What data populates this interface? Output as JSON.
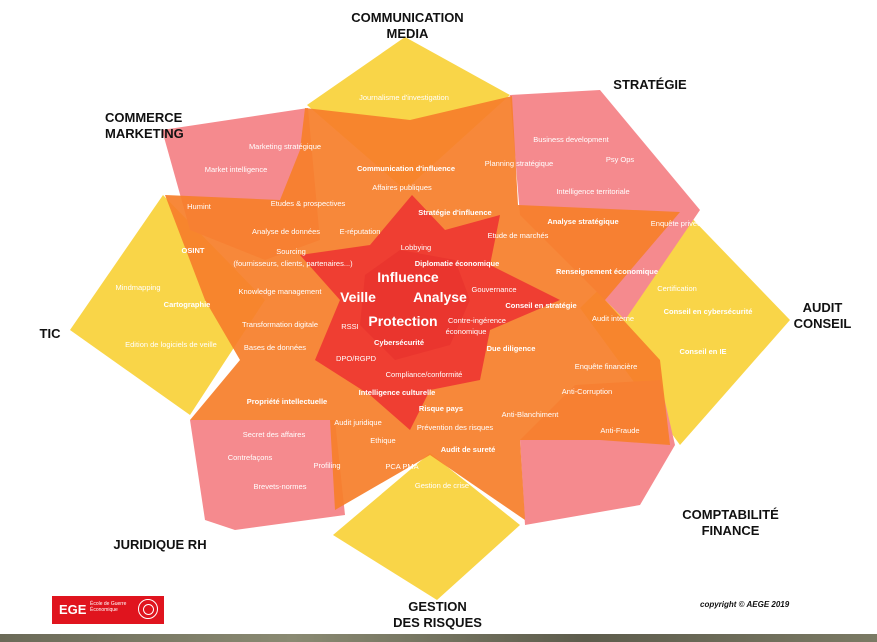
{
  "diagram": {
    "sectors": [
      {
        "id": "communication",
        "label_lines": [
          "COMMUNICATION",
          "MEDIA"
        ]
      },
      {
        "id": "strategie",
        "label_lines": [
          "STRATÉGIE"
        ]
      },
      {
        "id": "audit",
        "label_lines": [
          "AUDIT",
          "CONSEIL"
        ]
      },
      {
        "id": "comptabilite",
        "label_lines": [
          "COMPTABILITÉ",
          "FINANCE"
        ]
      },
      {
        "id": "gestion",
        "label_lines": [
          "GESTION",
          "DES RISQUES"
        ]
      },
      {
        "id": "juridique",
        "label_lines": [
          "JURIDIQUE RH"
        ]
      },
      {
        "id": "tic",
        "label_lines": [
          "TIC"
        ]
      },
      {
        "id": "commerce",
        "label_lines": [
          "COMMERCE",
          "MARKETING"
        ]
      }
    ],
    "core_terms": [
      "Influence",
      "Veille",
      "Analyse",
      "Protection"
    ],
    "terms": [
      {
        "t": "Journalisme d'investigation",
        "b": false
      },
      {
        "t": "Marketing stratégique",
        "b": false
      },
      {
        "t": "Market intelligence",
        "b": false
      },
      {
        "t": "Communication d'influence",
        "b": true
      },
      {
        "t": "Affaires publiques",
        "b": false
      },
      {
        "t": "Planning stratégique",
        "b": false
      },
      {
        "t": "Business development",
        "b": false
      },
      {
        "t": "Psy Ops",
        "b": false
      },
      {
        "t": "Intelligence territoriale",
        "b": false
      },
      {
        "t": "Humint",
        "b": false
      },
      {
        "t": "Etudes & prospectives",
        "b": false
      },
      {
        "t": "Stratégie d'influence",
        "b": true
      },
      {
        "t": "Analyse stratégique",
        "b": true
      },
      {
        "t": "Analyse de données",
        "b": false
      },
      {
        "t": "E-réputation",
        "b": false
      },
      {
        "t": "Etude de marchés",
        "b": false
      },
      {
        "t": "Enquête privée",
        "b": false
      },
      {
        "t": "OSINT",
        "b": true
      },
      {
        "t": "Lobbying",
        "b": false
      },
      {
        "t": "Sourcing",
        "b": false
      },
      {
        "t": "(fournisseurs, clients, partenaires...)",
        "b": false
      },
      {
        "t": "Diplomatie économique",
        "b": true
      },
      {
        "t": "Renseignement économique",
        "b": true
      },
      {
        "t": "Mindmapping",
        "b": false
      },
      {
        "t": "Cartographie",
        "b": true
      },
      {
        "t": "Knowledge management",
        "b": false
      },
      {
        "t": "Gouvernance",
        "b": false
      },
      {
        "t": "Certification",
        "b": false
      },
      {
        "t": "Conseil en stratégie",
        "b": true
      },
      {
        "t": "Conseil en cybersécurité",
        "b": true
      },
      {
        "t": "Transformation digitale",
        "b": false
      },
      {
        "t": "RSSI",
        "b": false
      },
      {
        "t": "Contre-ingérence",
        "b": false
      },
      {
        "t": "économique",
        "b": false
      },
      {
        "t": "Audit interne",
        "b": false
      },
      {
        "t": "Edition de logiciels de veille",
        "b": false
      },
      {
        "t": "Bases de données",
        "b": false
      },
      {
        "t": "Cybersécurité",
        "b": true
      },
      {
        "t": "Due diligence",
        "b": true
      },
      {
        "t": "Conseil en IE",
        "b": true
      },
      {
        "t": "DPO/RGPD",
        "b": false
      },
      {
        "t": "Enquête financière",
        "b": false
      },
      {
        "t": "Compliance/conformité",
        "b": false
      },
      {
        "t": "Anti-Corruption",
        "b": false
      },
      {
        "t": "Propriété intellectuelle",
        "b": true
      },
      {
        "t": "Intelligence culturelle",
        "b": true
      },
      {
        "t": "Risque pays",
        "b": true
      },
      {
        "t": "Anti-Blanchiment",
        "b": false
      },
      {
        "t": "Audit juridique",
        "b": false
      },
      {
        "t": "Prévention des risques",
        "b": false
      },
      {
        "t": "Anti-Fraude",
        "b": false
      },
      {
        "t": "Secret des affaires",
        "b": false
      },
      {
        "t": "Ethique",
        "b": false
      },
      {
        "t": "Contrefaçons",
        "b": false
      },
      {
        "t": "Audit de sureté",
        "b": true
      },
      {
        "t": "Profiling",
        "b": false
      },
      {
        "t": "PCA PMA",
        "b": false
      },
      {
        "t": "Brevets-normes",
        "b": false
      },
      {
        "t": "Gestion de crise",
        "b": false
      }
    ],
    "colors": {
      "yellow": "#f9d548",
      "pink": "#f58a8e",
      "orange": "#f67f2b",
      "red": "#ee3a32"
    }
  },
  "logo": {
    "text": "EGE",
    "subtitle": "École de Guerre Économique"
  },
  "copyright": "copyright © AEGE 2019"
}
